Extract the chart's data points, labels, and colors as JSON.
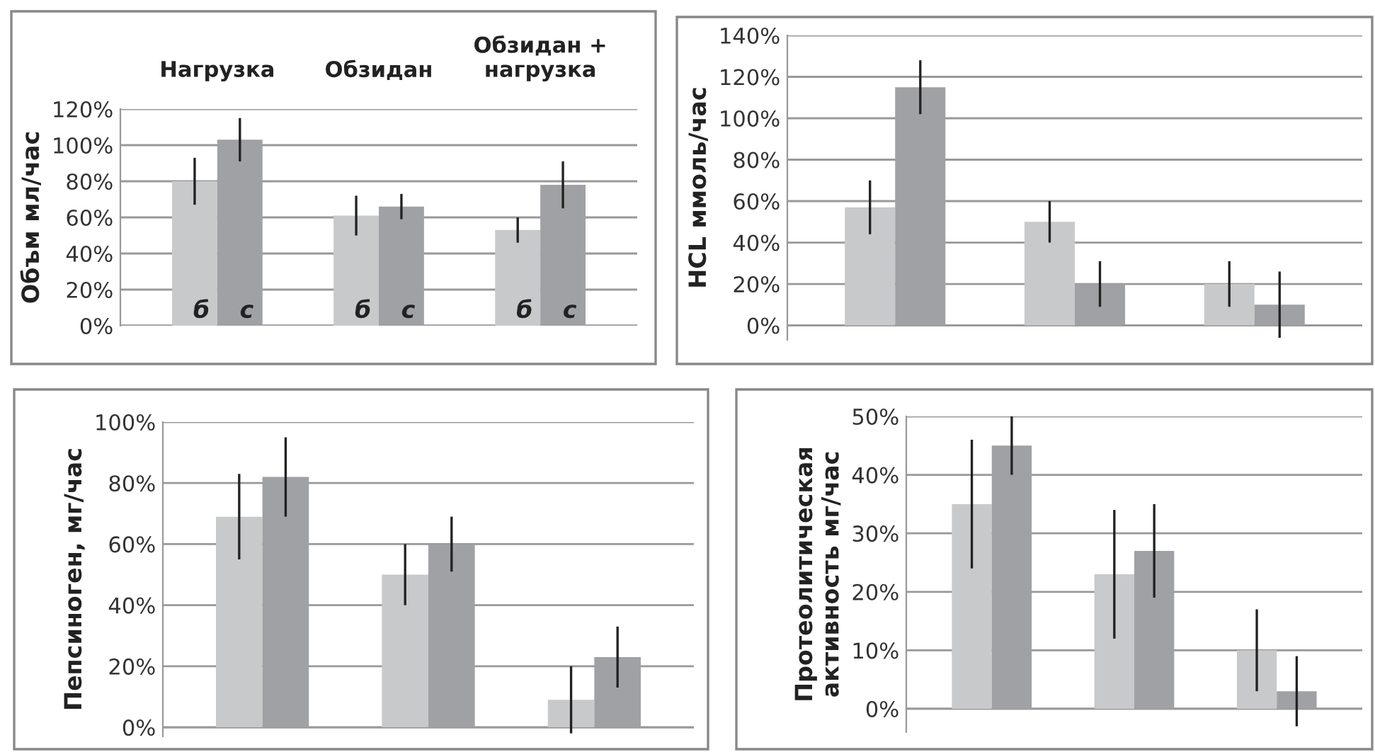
{
  "chart_data": [
    {
      "type": "bar",
      "ylabel": "Объм мл/час",
      "categories": [
        "Нагрузка",
        "Обзидан",
        "Обзидан +\nнагрузка"
      ],
      "ylim": [
        0,
        120
      ],
      "yticks": [
        {
          "value": 0,
          "label": "0%"
        },
        {
          "value": 20,
          "label": "20%"
        },
        {
          "value": 40,
          "label": "40%"
        },
        {
          "value": 60,
          "label": "60%"
        },
        {
          "value": 80,
          "label": "80%"
        },
        {
          "value": 100,
          "label": "100%"
        },
        {
          "value": 120,
          "label": "120%"
        }
      ],
      "grid": "y",
      "series": [
        {
          "color": "#c8c9cb",
          "values": [
            80,
            61,
            53
          ],
          "errors": [
            13,
            11,
            7
          ]
        },
        {
          "color": "#a0a1a4",
          "values": [
            103,
            66,
            78
          ],
          "errors": [
            12,
            7,
            13
          ]
        }
      ],
      "annotations": [
        {
          "text": "б",
          "x": "Нагрузка",
          "y": 8
        },
        {
          "text": "с",
          "x": "Нагрузка",
          "y": 8
        },
        {
          "text": "б",
          "x": "Обзидан",
          "y": 8
        },
        {
          "text": "с",
          "x": "Обзидан",
          "y": 8
        },
        {
          "text": "б",
          "x": "Обзидан +\nнагрузка",
          "y": 8
        },
        {
          "text": "с",
          "x": "Обзидан +\nнагрузка",
          "y": 8
        }
      ]
    },
    {
      "type": "bar",
      "ylabel": "HCL ммоль/час",
      "categories": [
        null,
        null,
        null
      ],
      "ylim": [
        -7,
        140
      ],
      "yticks": [
        {
          "value": 0,
          "label": "0%"
        },
        {
          "value": 20,
          "label": "20%"
        },
        {
          "value": 40,
          "label": "40%"
        },
        {
          "value": 60,
          "label": "60%"
        },
        {
          "value": 80,
          "label": "80%"
        },
        {
          "value": 100,
          "label": "100%"
        },
        {
          "value": 120,
          "label": "120%"
        },
        {
          "value": 140,
          "label": "140%"
        }
      ],
      "grid": "y",
      "series": [
        {
          "color": "#c8c9cb",
          "values": [
            57,
            50,
            20
          ],
          "errors": [
            13,
            10,
            11
          ]
        },
        {
          "color": "#a0a1a4",
          "values": [
            115,
            20,
            10
          ],
          "errors": [
            13,
            11,
            16
          ]
        }
      ]
    },
    {
      "type": "bar",
      "ylabel": "Пепсиноген, мг/час",
      "categories": [
        null,
        null,
        null
      ],
      "ylim": [
        -3,
        100
      ],
      "yticks": [
        {
          "value": 0,
          "label": "0%"
        },
        {
          "value": 20,
          "label": "20%"
        },
        {
          "value": 40,
          "label": "40%"
        },
        {
          "value": 60,
          "label": "60%"
        },
        {
          "value": 80,
          "label": "80%"
        },
        {
          "value": 100,
          "label": "100%"
        }
      ],
      "grid": "y",
      "series": [
        {
          "color": "#c8c9cb",
          "values": [
            69,
            50,
            9
          ],
          "errors": [
            14,
            10,
            11
          ]
        },
        {
          "color": "#a0a1a4",
          "values": [
            82,
            60,
            23
          ],
          "errors": [
            13,
            9,
            10
          ]
        }
      ]
    },
    {
      "type": "bar",
      "ylabel": "Протеолитическая\nактивность мг/час",
      "categories": [
        null,
        null,
        null
      ],
      "ylim": [
        -4,
        50
      ],
      "yticks": [
        {
          "value": 0,
          "label": "0%"
        },
        {
          "value": 10,
          "label": "10%"
        },
        {
          "value": 20,
          "label": "20%"
        },
        {
          "value": 30,
          "label": "30%"
        },
        {
          "value": 40,
          "label": "40%"
        },
        {
          "value": 50,
          "label": "50%"
        }
      ],
      "grid": "y",
      "series": [
        {
          "color": "#c8c9cb",
          "values": [
            35,
            23,
            10
          ],
          "errors": [
            11,
            11,
            7
          ]
        },
        {
          "color": "#a0a1a4",
          "values": [
            45,
            27,
            3
          ],
          "errors": [
            5,
            8,
            6
          ]
        }
      ]
    }
  ]
}
